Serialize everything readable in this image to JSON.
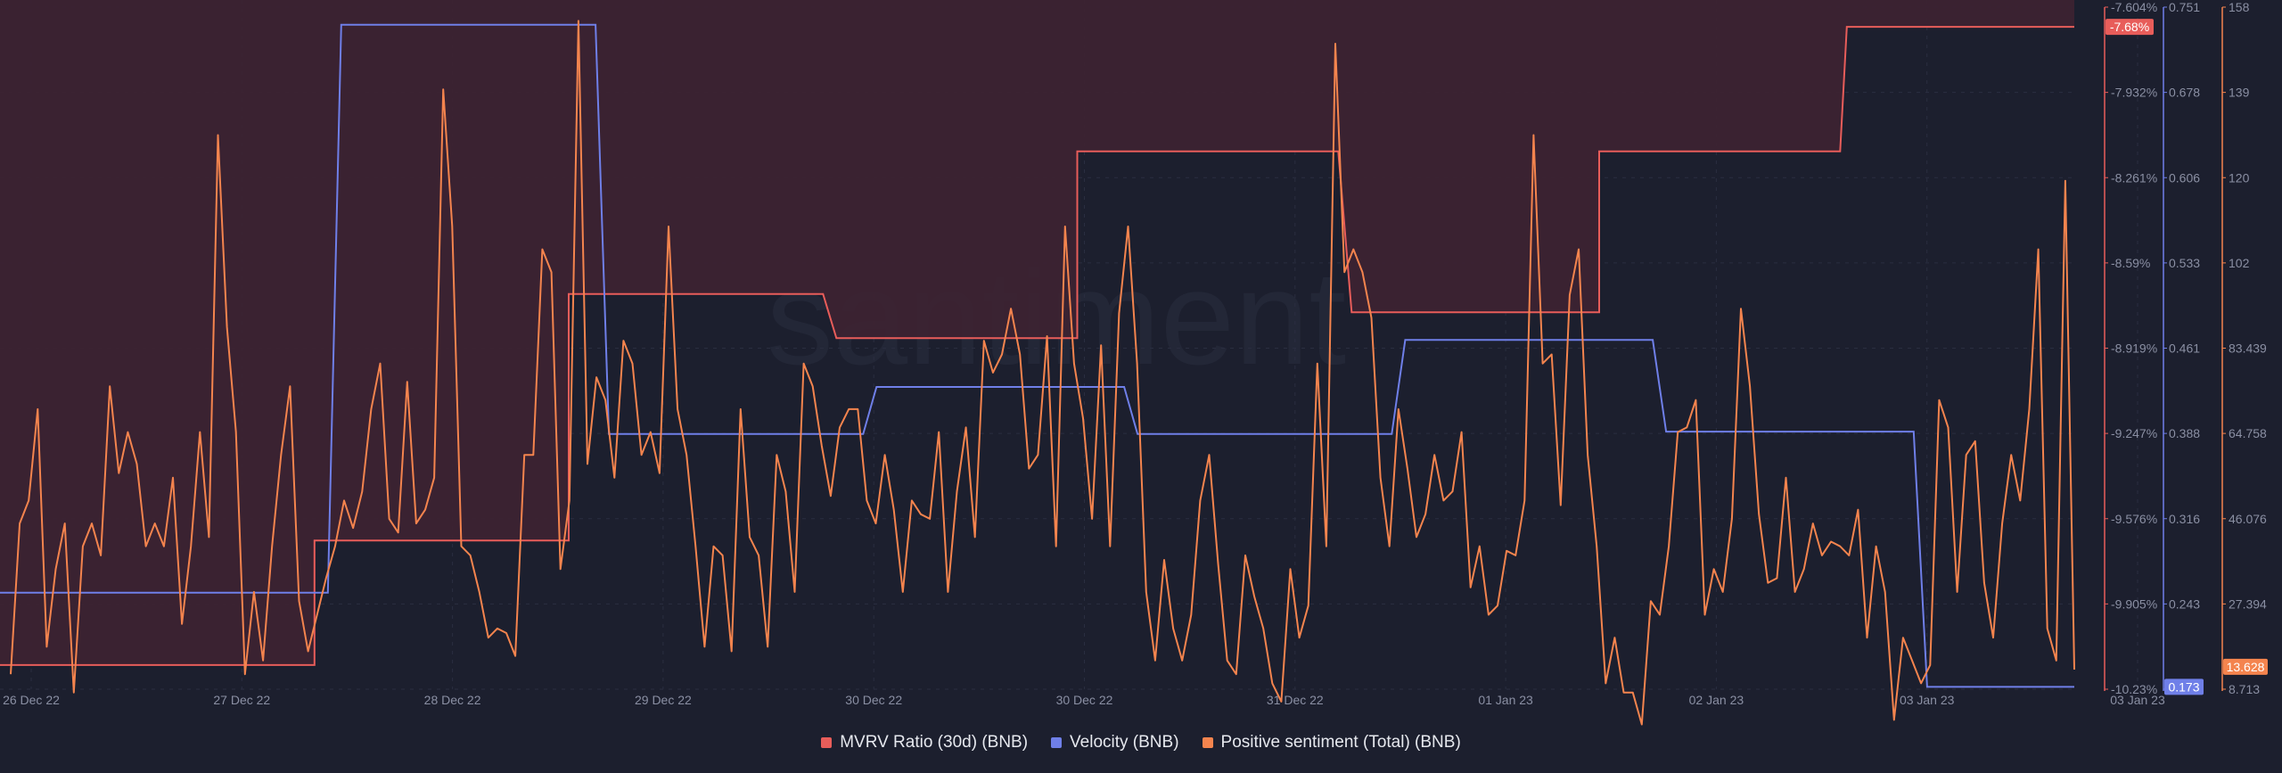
{
  "chart_data": {
    "type": "line",
    "watermark": "santiment",
    "x_ticks": [
      "26 Dec 22",
      "27 Dec 22",
      "28 Dec 22",
      "29 Dec 22",
      "30 Dec 22",
      "30 Dec 22",
      "31 Dec 22",
      "01 Jan 23",
      "02 Jan 23",
      "03 Jan 23",
      "03 Jan 23"
    ],
    "series": [
      {
        "name": "MVRV Ratio (30d) (BNB)",
        "color": "#e85d5a",
        "axis": "mvrv",
        "style": "step-area",
        "points": [
          [
            0,
            -10.14
          ],
          [
            4.7,
            -10.14
          ],
          [
            4.7,
            -9.66
          ],
          [
            8.5,
            -9.66
          ],
          [
            8.5,
            -8.71
          ],
          [
            12.3,
            -8.71
          ],
          [
            12.5,
            -8.88
          ],
          [
            16.1,
            -8.88
          ],
          [
            16.1,
            -8.16
          ],
          [
            20,
            -8.16
          ],
          [
            20.2,
            -8.78
          ],
          [
            23.9,
            -8.78
          ],
          [
            23.9,
            -8.16
          ],
          [
            27.5,
            -8.16
          ],
          [
            27.6,
            -7.68
          ],
          [
            31,
            -7.68
          ]
        ],
        "last_value_label": "-7.68%"
      },
      {
        "name": "Velocity (BNB)",
        "color": "#6f7fe8",
        "axis": "velocity",
        "style": "step",
        "points": [
          [
            0,
            0.253
          ],
          [
            4.9,
            0.253
          ],
          [
            5.1,
            0.736
          ],
          [
            8.9,
            0.736
          ],
          [
            9.1,
            0.388
          ],
          [
            12.9,
            0.388
          ],
          [
            13.1,
            0.428
          ],
          [
            16.8,
            0.428
          ],
          [
            17,
            0.388
          ],
          [
            20.8,
            0.388
          ],
          [
            21,
            0.468
          ],
          [
            24.7,
            0.468
          ],
          [
            24.9,
            0.39
          ],
          [
            28.6,
            0.39
          ],
          [
            28.8,
            0.173
          ],
          [
            31,
            0.173
          ]
        ],
        "last_value_label": "0.173"
      },
      {
        "name": "Positive sentiment (Total) (BNB)",
        "color": "#f4844e",
        "axis": "sentiment",
        "style": "line",
        "values": [
          12,
          45,
          50,
          70,
          18,
          35,
          45,
          8,
          40,
          45,
          38,
          75,
          56,
          65,
          58,
          40,
          45,
          40,
          55,
          23,
          40,
          65,
          42,
          130,
          88,
          65,
          12,
          30,
          15,
          40,
          60,
          75,
          28,
          17,
          25,
          33,
          40,
          50,
          44,
          52,
          70,
          80,
          46,
          43,
          76,
          45,
          48,
          55,
          140,
          110,
          40,
          38,
          30,
          20,
          22,
          21,
          16,
          60,
          60,
          105,
          100,
          35,
          50,
          155,
          58,
          77,
          72,
          55,
          85,
          80,
          60,
          65,
          56,
          110,
          70,
          60,
          40,
          18,
          40,
          38,
          17,
          70,
          42,
          38,
          18,
          60,
          52,
          30,
          80,
          75,
          62,
          51,
          66,
          70,
          70,
          50,
          45,
          60,
          48,
          30,
          50,
          47,
          46,
          65,
          30,
          52,
          66,
          42,
          85,
          78,
          82,
          92,
          82,
          57,
          60,
          86,
          40,
          110,
          80,
          68,
          46,
          84,
          40,
          91,
          110,
          80,
          30,
          15,
          37,
          22,
          15,
          25,
          50,
          60,
          36,
          15,
          12,
          38,
          29,
          22,
          10,
          6,
          35,
          20,
          27,
          80,
          40,
          150,
          100,
          105,
          100,
          90,
          55,
          40,
          70,
          57,
          42,
          47,
          60,
          50,
          52,
          65,
          31,
          40,
          25,
          27,
          39,
          38,
          50,
          130,
          80,
          82,
          49,
          95,
          105,
          60,
          40,
          10,
          20,
          8,
          8,
          1,
          28,
          25,
          40,
          65,
          66,
          72,
          25,
          35,
          30,
          46,
          92,
          75,
          47,
          32,
          33,
          55,
          30,
          35,
          45,
          38,
          41,
          40,
          38,
          48,
          20,
          40,
          30,
          2,
          20,
          15,
          10,
          14,
          72,
          66,
          30,
          60,
          63,
          32,
          20,
          45,
          60,
          50,
          70,
          105,
          22,
          15,
          120,
          13
        ],
        "last_value_label": "13.628"
      }
    ],
    "axes": {
      "mvrv": {
        "ticks": [
          "-7.604%",
          "-7.932%",
          "-8.261%",
          "-8.59%",
          "-8.919%",
          "-9.247%",
          "-9.576%",
          "-9.905%",
          "-10.23%"
        ],
        "min": -10.233,
        "max": -7.604
      },
      "velocity": {
        "ticks": [
          "0.751",
          "0.678",
          "0.606",
          "0.533",
          "0.461",
          "0.388",
          "0.316",
          "0.243",
          "0.173"
        ],
        "min": 0.171,
        "max": 0.751
      },
      "sentiment": {
        "ticks": [
          "158",
          "139",
          "120",
          "102",
          "83.439",
          "64.758",
          "46.076",
          "27.394",
          "8.713"
        ],
        "min": 8.713,
        "max": 158
      }
    },
    "grid": true,
    "legend_position": "bottom-center"
  },
  "legend": [
    {
      "label": "MVRV Ratio (30d) (BNB)",
      "color": "#e85d5a"
    },
    {
      "label": "Velocity (BNB)",
      "color": "#6f7fe8"
    },
    {
      "label": "Positive sentiment (Total) (BNB)",
      "color": "#f4844e"
    }
  ]
}
